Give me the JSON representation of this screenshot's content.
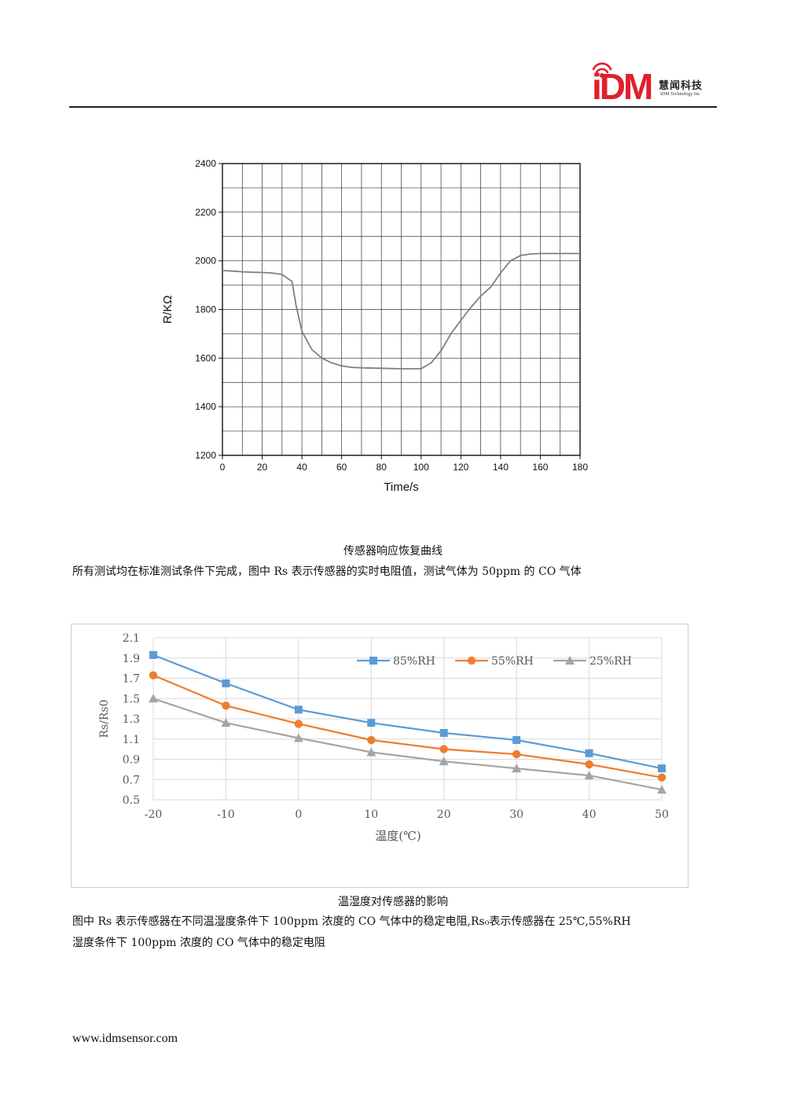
{
  "header": {
    "logo_text": "iDM",
    "company_name": "慧闻科技",
    "company_subtitle": "IDM Technology Inc",
    "brand_color": "#e0202a"
  },
  "figure1": {
    "caption": "传感器响应恢复曲线",
    "description": "所有测试均在标准测试条件下完成，图中 Rs 表示传感器的实时电阻值，测试气体为 50ppm 的 CO 气体"
  },
  "figure2": {
    "caption": "温湿度对传感器的影响",
    "description_line1": "图中 Rs 表示传感器在不同温湿度条件下 100ppm 浓度的 CO 气体中的稳定电阻,Rs₀表示传感器在 25℃,55%RH",
    "description_line2": "湿度条件下 100ppm 浓度的 CO 气体中的稳定电阻"
  },
  "footer": {
    "url": "www.idmsensor.com"
  },
  "chart_data": [
    {
      "type": "line",
      "xlabel": "Time/s",
      "ylabel": "R/KΩ",
      "xlim": [
        0,
        180
      ],
      "ylim": [
        1200,
        2400
      ],
      "xticks": [
        0,
        20,
        40,
        60,
        80,
        100,
        120,
        140,
        160,
        180
      ],
      "yticks": [
        1200,
        1400,
        1600,
        1800,
        2000,
        2200,
        2400
      ],
      "grid": true,
      "line_color": "#7f7f7f",
      "series": [
        {
          "x": [
            0,
            5,
            10,
            15,
            20,
            25,
            30,
            35,
            37,
            40,
            45,
            50,
            55,
            60,
            65,
            70,
            80,
            90,
            100,
            105,
            110,
            115,
            120,
            125,
            130,
            135,
            140,
            145,
            150,
            155,
            160,
            170,
            180
          ],
          "values": [
            1960,
            1958,
            1955,
            1953,
            1952,
            1950,
            1944,
            1915,
            1820,
            1710,
            1635,
            1600,
            1580,
            1568,
            1562,
            1560,
            1558,
            1556,
            1556,
            1580,
            1630,
            1700,
            1755,
            1808,
            1855,
            1892,
            1950,
            2000,
            2022,
            2028,
            2030,
            2030,
            2030
          ]
        }
      ]
    },
    {
      "type": "line",
      "xlabel": "温度(℃)",
      "ylabel": "Rs/Rs0",
      "xlim": [
        -20,
        50
      ],
      "ylim": [
        0.5,
        2.1
      ],
      "xticks": [
        -20,
        -10,
        0,
        10,
        20,
        30,
        40,
        50
      ],
      "ytick_labels": [
        "0.5",
        "0.7",
        "0.9",
        "1.1",
        "1.3",
        "1.5",
        "1.7",
        "1.9",
        "2.1"
      ],
      "grid": true,
      "legend": "top-right",
      "x": [
        -20,
        -10,
        0,
        10,
        20,
        30,
        40,
        50
      ],
      "series": [
        {
          "name": "85%RH",
          "color": "#5b9bd5",
          "marker": "square",
          "values": [
            1.93,
            1.65,
            1.39,
            1.26,
            1.16,
            1.09,
            0.96,
            0.81
          ]
        },
        {
          "name": "55%RH",
          "color": "#ed7d31",
          "marker": "circle",
          "values": [
            1.73,
            1.43,
            1.25,
            1.09,
            1.0,
            0.95,
            0.85,
            0.72
          ]
        },
        {
          "name": "25%RH",
          "color": "#a5a5a5",
          "marker": "triangle",
          "values": [
            1.5,
            1.26,
            1.11,
            0.97,
            0.88,
            0.81,
            0.74,
            0.6
          ]
        }
      ]
    }
  ]
}
